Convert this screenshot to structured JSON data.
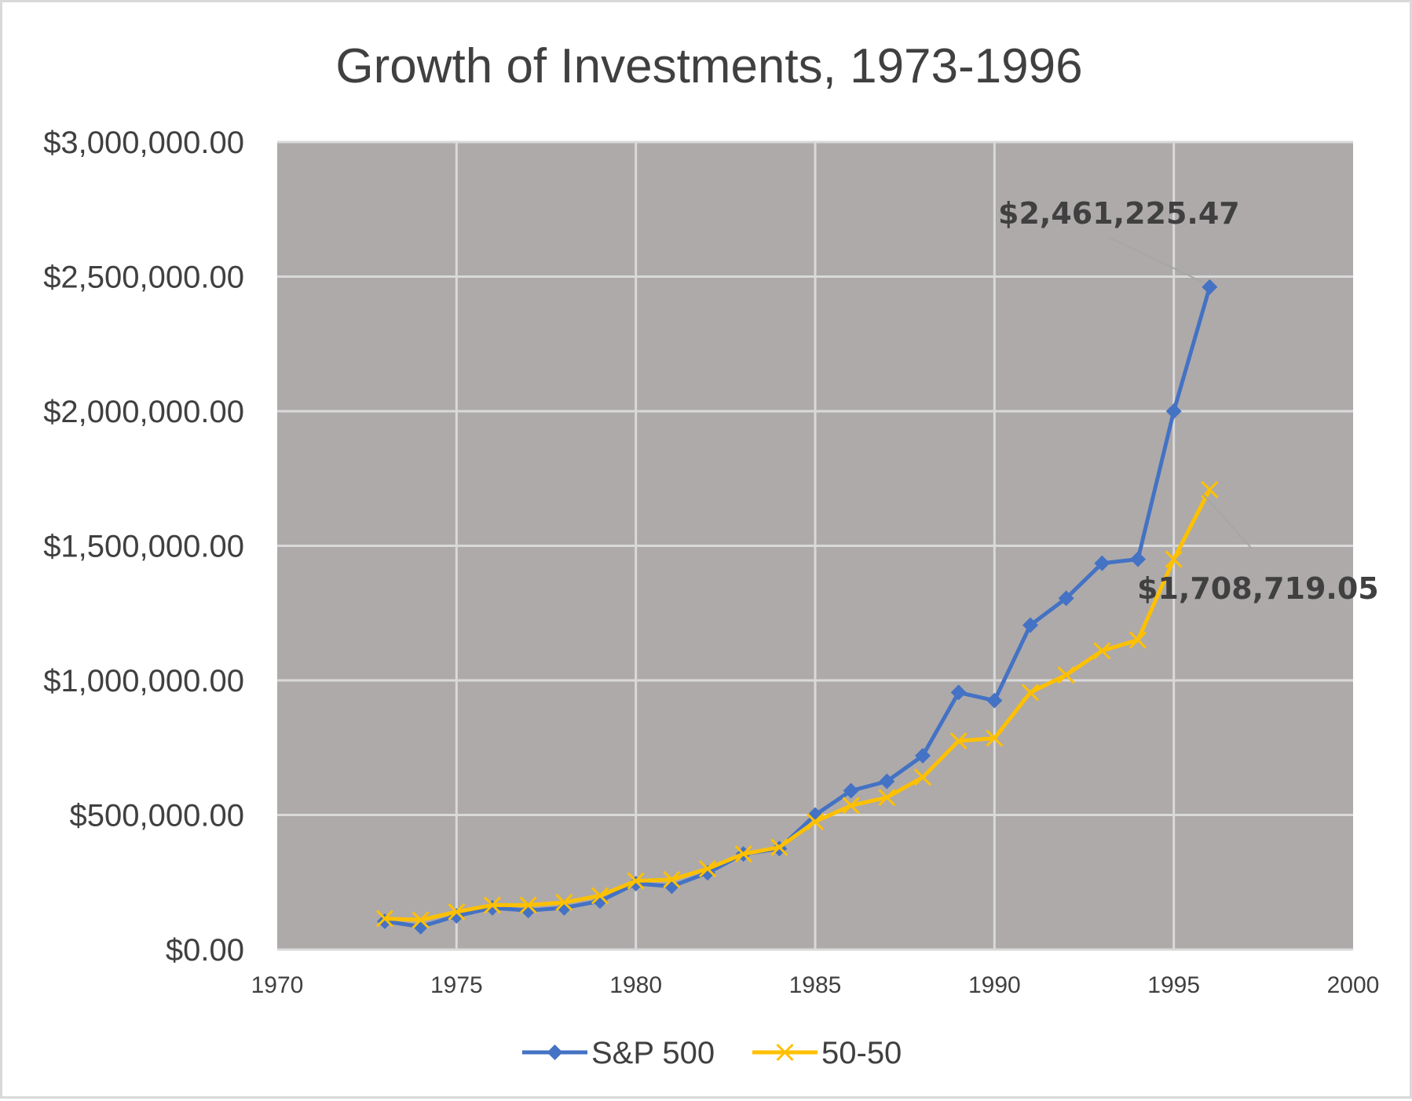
{
  "chart_data": {
    "type": "line",
    "title": "Growth of Investments, 1973-1996",
    "xlabel": "",
    "ylabel": "",
    "xlim": [
      1970,
      2000
    ],
    "ylim": [
      0,
      3000000
    ],
    "x_ticks": [
      "1970",
      "1975",
      "1980",
      "1985",
      "1990",
      "1995",
      "2000"
    ],
    "y_ticks": [
      "$0.00",
      "$500,000.00",
      "$1,000,000.00",
      "$1,500,000.00",
      "$2,000,000.00",
      "$2,500,000.00",
      "$3,000,000.00"
    ],
    "grid": true,
    "plot_background": "#aeaaaa",
    "legend_position": "bottom",
    "x": [
      1973,
      1974,
      1975,
      1976,
      1977,
      1978,
      1979,
      1980,
      1981,
      1982,
      1983,
      1984,
      1985,
      1986,
      1987,
      1988,
      1989,
      1990,
      1991,
      1992,
      1993,
      1994,
      1995,
      1996
    ],
    "series": [
      {
        "name": "S&P 500",
        "color": "#4472c4",
        "marker": "diamond",
        "values": [
          105000,
          85000,
          125000,
          155000,
          145000,
          155000,
          180000,
          245000,
          235000,
          285000,
          355000,
          375000,
          500000,
          590000,
          625000,
          720000,
          955000,
          925000,
          1205000,
          1305000,
          1435000,
          1450000,
          2000000,
          2461225.47
        ]
      },
      {
        "name": "50-50",
        "color": "#ffc000",
        "marker": "x",
        "values": [
          115000,
          110000,
          140000,
          165000,
          165000,
          175000,
          200000,
          255000,
          260000,
          300000,
          355000,
          380000,
          475000,
          535000,
          565000,
          640000,
          775000,
          785000,
          955000,
          1020000,
          1110000,
          1150000,
          1450000,
          1708719.05
        ]
      }
    ],
    "annotations": [
      {
        "series": 0,
        "index": 23,
        "text": "$2,461,225.47"
      },
      {
        "series": 1,
        "index": 23,
        "text": "$1,708,719.05"
      }
    ]
  }
}
